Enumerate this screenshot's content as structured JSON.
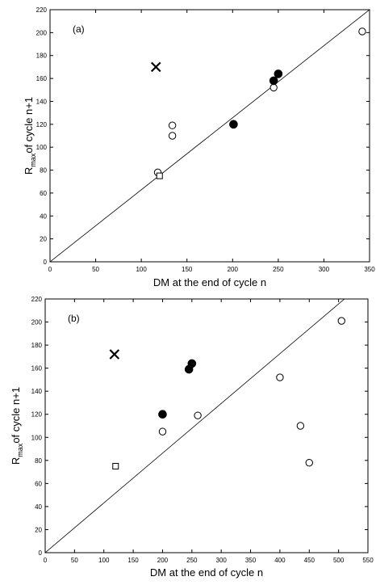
{
  "chart_data": [
    {
      "type": "scatter",
      "panel_label": "(a)",
      "xlabel": "DM at the end of cycle n",
      "ylabel": {
        "prefix": "R",
        "subscript": "max",
        "suffix": "of cycle n+1"
      },
      "xlim": [
        0,
        350
      ],
      "ylim": [
        0,
        220
      ],
      "xticks": [
        0,
        50,
        100,
        150,
        200,
        250,
        300,
        350
      ],
      "yticks": [
        0,
        20,
        40,
        60,
        80,
        100,
        120,
        140,
        160,
        180,
        200,
        220
      ],
      "grid": false,
      "reference_line": {
        "x": [
          0,
          350
        ],
        "y": [
          0,
          220
        ]
      },
      "series": [
        {
          "marker": "open-circle",
          "points": [
            [
              118,
              78
            ],
            [
              134,
              119
            ],
            [
              134,
              110
            ],
            [
              245,
              152
            ],
            [
              342,
              201
            ]
          ]
        },
        {
          "marker": "filled-circle",
          "points": [
            [
              201,
              120
            ],
            [
              245,
              158
            ],
            [
              250,
              164
            ]
          ]
        },
        {
          "marker": "open-square",
          "points": [
            [
              120,
              75
            ]
          ]
        },
        {
          "marker": "cross",
          "points": [
            [
              116,
              170
            ]
          ]
        }
      ]
    },
    {
      "type": "scatter",
      "panel_label": "(b)",
      "xlabel": "DM at the end of cycle n",
      "ylabel": {
        "prefix": "R",
        "subscript": "max",
        "suffix": "of cycle n+1"
      },
      "xlim": [
        0,
        550
      ],
      "ylim": [
        0,
        220
      ],
      "xticks": [
        0,
        50,
        100,
        150,
        200,
        250,
        300,
        350,
        400,
        450,
        500,
        550
      ],
      "yticks": [
        0,
        20,
        40,
        60,
        80,
        100,
        120,
        140,
        160,
        180,
        200,
        220
      ],
      "grid": false,
      "reference_line": {
        "x": [
          0,
          510
        ],
        "y": [
          0,
          220
        ]
      },
      "series": [
        {
          "marker": "open-circle",
          "points": [
            [
              200,
              105
            ],
            [
              260,
              119
            ],
            [
              400,
              152
            ],
            [
              435,
              110
            ],
            [
              450,
              78
            ],
            [
              505,
              201
            ]
          ]
        },
        {
          "marker": "filled-circle",
          "points": [
            [
              200,
              120
            ],
            [
              245,
              159
            ],
            [
              250,
              164
            ]
          ]
        },
        {
          "marker": "open-square",
          "points": [
            [
              120,
              75
            ]
          ]
        },
        {
          "marker": "cross",
          "points": [
            [
              118,
              172
            ]
          ]
        }
      ]
    }
  ]
}
